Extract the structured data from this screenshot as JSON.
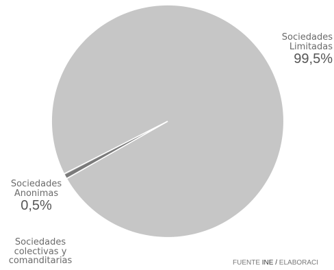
{
  "chart_data": {
    "type": "pie",
    "slices": [
      {
        "label": "Sociedades Limitadas",
        "label_lines": [
          "Sociedades",
          "Limitadas"
        ],
        "value": 99.5,
        "value_label": "99,5%",
        "color": "#c6c6c6"
      },
      {
        "label": "Sociedades Anonimas",
        "label_lines": [
          "Sociedades",
          "Anonimas"
        ],
        "value": 0.5,
        "value_label": "0,5%",
        "color": "#7a7a7a"
      },
      {
        "label": "Sociedades colectivas y comanditarias",
        "label_lines": [
          "Sociedades",
          "colectivas y",
          "comanditarias"
        ],
        "value": 0.05,
        "value_label": "",
        "color": "#9a9a9a"
      }
    ],
    "separator_color": "#ffffff"
  },
  "source": {
    "prefix": "FUENTE",
    "org": "INE",
    "sep": "/",
    "suffix": "ELABORACI"
  }
}
